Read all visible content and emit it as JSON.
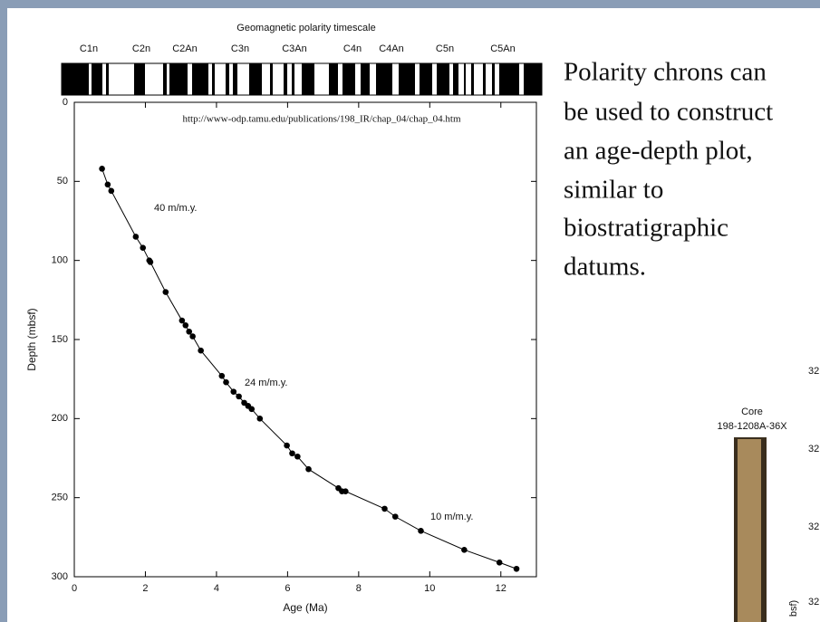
{
  "chart_data": {
    "type": "scatter-line",
    "title": "Geomagnetic polarity timescale",
    "chrons": [
      "C1n",
      "C2n",
      "C2An",
      "C3n",
      "C3An",
      "C4n",
      "C4An",
      "C5n",
      "C5An"
    ],
    "source": "http://www-odp.tamu.edu/publications/198_IR/chap_04/chap_04.htm",
    "x_label": "Age (Ma)",
    "y_label": "Depth (mbsf)",
    "xlim": [
      0,
      13
    ],
    "xticks": [
      0,
      2,
      4,
      6,
      8,
      10,
      12
    ],
    "ylim": [
      300,
      0
    ],
    "yticks": [
      0,
      50,
      100,
      150,
      200,
      250,
      300
    ],
    "color": "#000000",
    "x": [
      0.78,
      0.94,
      1.04,
      1.73,
      1.93,
      2.11,
      2.14,
      2.57,
      3.03,
      3.13,
      3.23,
      3.33,
      3.56,
      4.15,
      4.27,
      4.48,
      4.63,
      4.78,
      4.89,
      4.99,
      5.22,
      5.98,
      6.13,
      6.28,
      6.59,
      7.43,
      7.53,
      7.63,
      8.73,
      9.03,
      9.75,
      10.97,
      11.96,
      12.44
    ],
    "values": [
      42,
      52,
      56,
      85,
      92,
      100,
      101,
      120,
      138,
      141,
      145,
      148,
      157,
      173,
      177,
      183,
      186,
      190,
      192,
      194,
      200,
      217,
      222,
      224,
      232,
      244,
      246,
      246,
      257,
      262,
      271,
      283,
      291,
      295
    ],
    "annotations": [
      "40 m/m.y.",
      "24 m/m.y.",
      "10 m/m.y."
    ]
  },
  "slide_text": [
    "Polarity chrons can",
    "be used to construct",
    "an age-depth plot,",
    "similar to",
    "biostratigraphic",
    "datums."
  ],
  "core_figure": {
    "title": "Core",
    "core_id": "198-1208A-36X",
    "axis_fragments": [
      "32",
      "32",
      "32",
      "32"
    ],
    "axis_label_fragment": "bsf)"
  }
}
